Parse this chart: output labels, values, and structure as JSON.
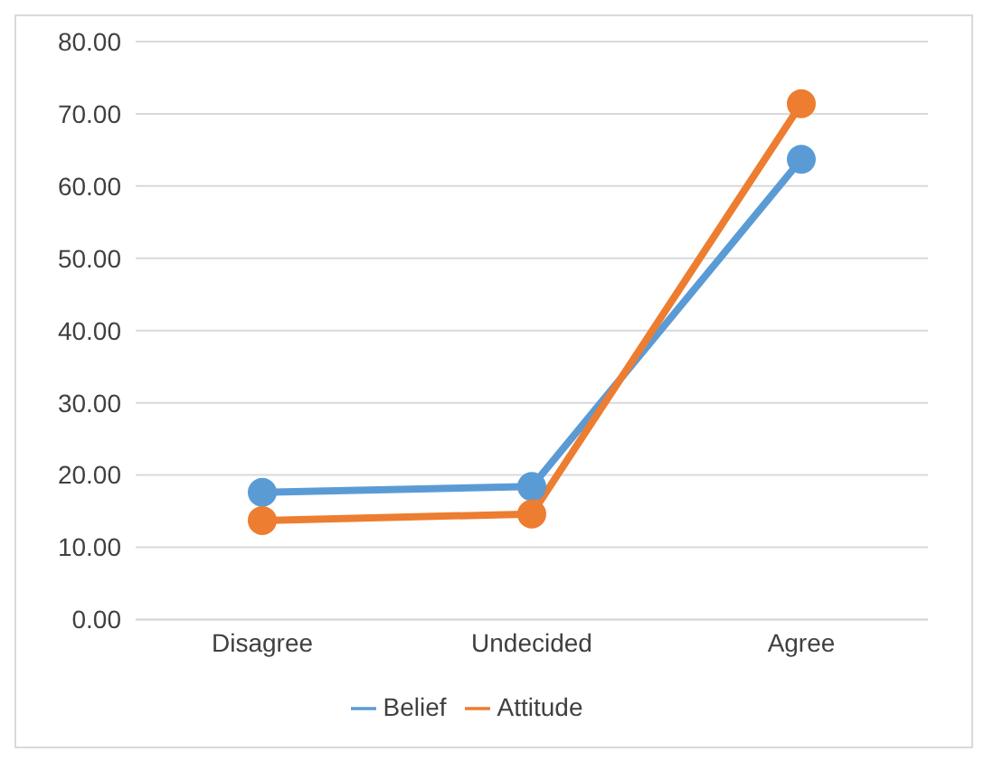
{
  "chart_data": {
    "type": "line",
    "categories": [
      "Disagree",
      "Undecided",
      "Agree"
    ],
    "series": [
      {
        "name": "Belief",
        "color": "#5b9bd5",
        "values": [
          17.6,
          18.4,
          63.7
        ]
      },
      {
        "name": "Attitude",
        "color": "#ed7d31",
        "values": [
          13.7,
          14.6,
          71.4
        ]
      }
    ],
    "ylim": [
      0,
      80
    ],
    "yticks": [
      {
        "value": 0,
        "label": "0.00"
      },
      {
        "value": 10,
        "label": "10.00"
      },
      {
        "value": 20,
        "label": "20.00"
      },
      {
        "value": 30,
        "label": "30.00"
      },
      {
        "value": 40,
        "label": "40.00"
      },
      {
        "value": 50,
        "label": "50.00"
      },
      {
        "value": 60,
        "label": "60.00"
      },
      {
        "value": 70,
        "label": "70.00"
      },
      {
        "value": 80,
        "label": "80.00"
      }
    ],
    "grid": "y",
    "legend": "bottom",
    "marker": "circle",
    "line_style": "solid"
  }
}
